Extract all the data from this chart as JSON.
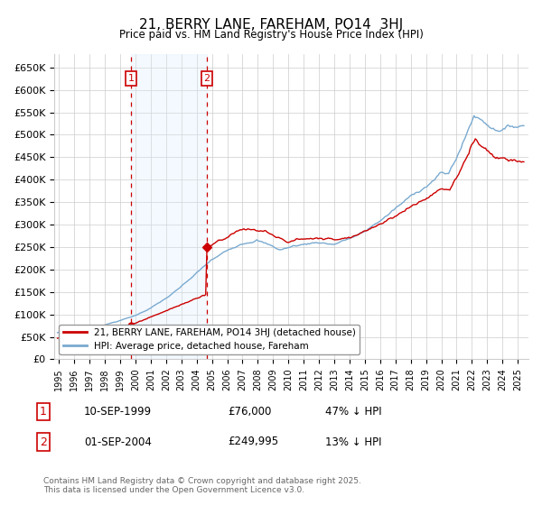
{
  "title": "21, BERRY LANE, FAREHAM, PO14  3HJ",
  "subtitle": "Price paid vs. HM Land Registry's House Price Index (HPI)",
  "ylim": [
    0,
    680000
  ],
  "yticks": [
    0,
    50000,
    100000,
    150000,
    200000,
    250000,
    300000,
    350000,
    400000,
    450000,
    500000,
    550000,
    600000,
    650000
  ],
  "xlim_start": 1994.7,
  "xlim_end": 2025.7,
  "background_color": "#ffffff",
  "grid_color": "#cccccc",
  "sale1": {
    "date_year": 1999.7,
    "price": 76000,
    "label": "1",
    "date_str": "10-SEP-1999",
    "price_str": "£76,000",
    "hpi_str": "47% ↓ HPI"
  },
  "sale2": {
    "date_year": 2004.67,
    "price": 249995,
    "label": "2",
    "date_str": "01-SEP-2004",
    "price_str": "£249,995",
    "hpi_str": "13% ↓ HPI"
  },
  "sale_line_color": "#cc0000",
  "hpi_line_color": "#7aaad0",
  "vline_color": "#cc0000",
  "sale_box_color": "#cc0000",
  "legend_house_label": "21, BERRY LANE, FAREHAM, PO14 3HJ (detached house)",
  "legend_hpi_label": "HPI: Average price, detached house, Fareham",
  "footer": "Contains HM Land Registry data © Crown copyright and database right 2025.\nThis data is licensed under the Open Government Licence v3.0.",
  "highlight_fill": "#ddeeff",
  "highlight_alpha": 0.3
}
